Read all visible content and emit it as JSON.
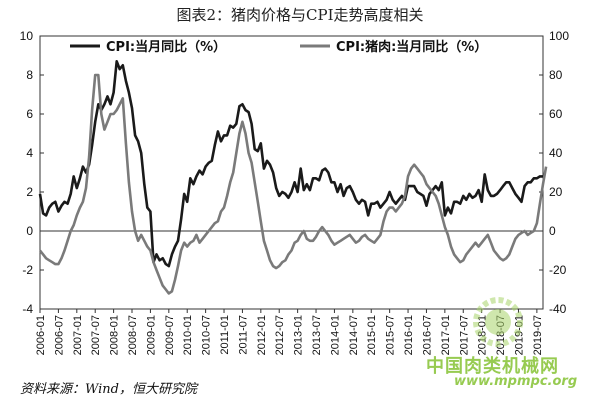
{
  "figure": {
    "title": "图表2：猪肉价格与CPI走势高度相关",
    "source": "资料来源：Wind，恒大研究院",
    "watermark_cn": "中国肉类机械网",
    "watermark_url": "www.mpmpc.org"
  },
  "chart_data": {
    "type": "line",
    "title": "图表2：猪肉价格与CPI走势高度相关",
    "left_axis": {
      "ylim": [
        -4,
        10
      ],
      "ticks": [
        "-4",
        "-2",
        "0",
        "2",
        "4",
        "6",
        "8",
        "10"
      ]
    },
    "right_axis": {
      "ylim": [
        -40,
        100
      ],
      "ticks": [
        "-40",
        "-20",
        "0",
        "20",
        "40",
        "60",
        "80",
        "100"
      ]
    },
    "x_tick_labels": [
      "2006-01",
      "2006-07",
      "2007-01",
      "2007-07",
      "2008-01",
      "2008-07",
      "2009-01",
      "2009-07",
      "2010-01",
      "2010-07",
      "2011-01",
      "2011-07",
      "2012-01",
      "2012-07",
      "2013-01",
      "2013-07",
      "2014-01",
      "2014-07",
      "2015-01",
      "2015-07",
      "2016-01",
      "2016-07",
      "2017-01",
      "2017-07",
      "2018-01",
      "2018-07",
      "2019-01",
      "2019-07"
    ],
    "legend_position": "top",
    "series": [
      {
        "name": "CPI:当月同比（%）",
        "axis": "left",
        "color": "#1a1a1a",
        "start": "2006-01",
        "values": [
          1.9,
          0.9,
          0.8,
          1.2,
          1.4,
          1.5,
          1.0,
          1.3,
          1.5,
          1.4,
          1.9,
          2.8,
          2.2,
          2.7,
          3.3,
          3.0,
          3.4,
          4.4,
          5.6,
          6.5,
          6.2,
          6.5,
          6.9,
          6.5,
          7.1,
          8.7,
          8.3,
          8.5,
          7.7,
          7.1,
          6.3,
          4.9,
          4.6,
          4.0,
          2.4,
          1.2,
          1.0,
          -1.6,
          -1.2,
          -1.5,
          -1.4,
          -1.7,
          -1.8,
          -1.2,
          -0.8,
          -0.5,
          0.6,
          1.9,
          1.5,
          2.7,
          2.4,
          2.8,
          3.1,
          2.9,
          3.3,
          3.5,
          3.6,
          4.4,
          5.1,
          4.6,
          4.9,
          4.9,
          5.4,
          5.3,
          5.5,
          6.4,
          6.5,
          6.2,
          6.1,
          5.5,
          4.2,
          4.1,
          4.5,
          3.2,
          3.6,
          3.4,
          3.0,
          2.2,
          1.8,
          2.0,
          1.9,
          1.7,
          2.0,
          2.5,
          2.0,
          3.2,
          2.1,
          2.4,
          2.1,
          2.7,
          2.7,
          2.6,
          3.1,
          3.2,
          3.0,
          2.5,
          2.5,
          2.0,
          2.4,
          1.8,
          2.2,
          2.3,
          2.0,
          1.6,
          1.4,
          1.6,
          1.5,
          0.8,
          1.4,
          1.4,
          1.5,
          1.2,
          1.4,
          1.6,
          2.0,
          1.6,
          1.4,
          1.6,
          1.8,
          1.6,
          2.3,
          2.3,
          2.3,
          2.0,
          1.9,
          1.8,
          1.3,
          1.9,
          2.1,
          2.3,
          2.1,
          2.5,
          0.8,
          1.2,
          0.9,
          1.5,
          1.5,
          1.4,
          1.8,
          1.6,
          1.9,
          1.7,
          1.8,
          2.1,
          1.5,
          2.9,
          2.1,
          1.8,
          1.8,
          1.9,
          2.1,
          2.3,
          2.5,
          2.5,
          2.2,
          1.9,
          1.7,
          1.5,
          2.3,
          2.5,
          2.5,
          2.7,
          2.7,
          2.8,
          2.8
        ]
      },
      {
        "name": "CPI:猪肉:当月同比（%）",
        "axis": "right",
        "color": "#7a7a7a",
        "start": "2006-01",
        "values": [
          -10,
          -12,
          -14,
          -15,
          -16,
          -17,
          -17,
          -14,
          -10,
          -5,
          0,
          3,
          8,
          12,
          15,
          22,
          38,
          62,
          80,
          80,
          60,
          52,
          56,
          60,
          60,
          62,
          65,
          68,
          45,
          25,
          10,
          0,
          -5,
          -2,
          -5,
          -8,
          -10,
          -16,
          -20,
          -24,
          -28,
          -30,
          -32,
          -31,
          -25,
          -18,
          -10,
          -6,
          -8,
          -6,
          -5,
          -2,
          -6,
          -4,
          -2,
          0,
          2,
          4,
          5,
          10,
          12,
          18,
          25,
          30,
          40,
          50,
          56,
          50,
          40,
          35,
          25,
          15,
          5,
          -5,
          -10,
          -15,
          -18,
          -19,
          -18,
          -16,
          -15,
          -12,
          -10,
          -6,
          -5,
          -2,
          0,
          -4,
          -5,
          -5,
          -3,
          0,
          2,
          0,
          -2,
          -5,
          -7,
          -6,
          -5,
          -4,
          -3,
          -2,
          -4,
          -6,
          -5,
          -3,
          -2,
          -4,
          -5,
          -6,
          -4,
          -2,
          5,
          10,
          12,
          12,
          10,
          12,
          14,
          18,
          28,
          32,
          34,
          32,
          30,
          28,
          24,
          22,
          20,
          18,
          14,
          8,
          2,
          -2,
          -8,
          -12,
          -14,
          -16,
          -15,
          -12,
          -10,
          -8,
          -6,
          -8,
          -6,
          -4,
          -2,
          -6,
          -10,
          -12,
          -14,
          -15,
          -14,
          -12,
          -8,
          -4,
          -2,
          -1,
          0,
          -2,
          -1,
          0,
          4,
          14,
          24,
          33
        ]
      }
    ]
  }
}
